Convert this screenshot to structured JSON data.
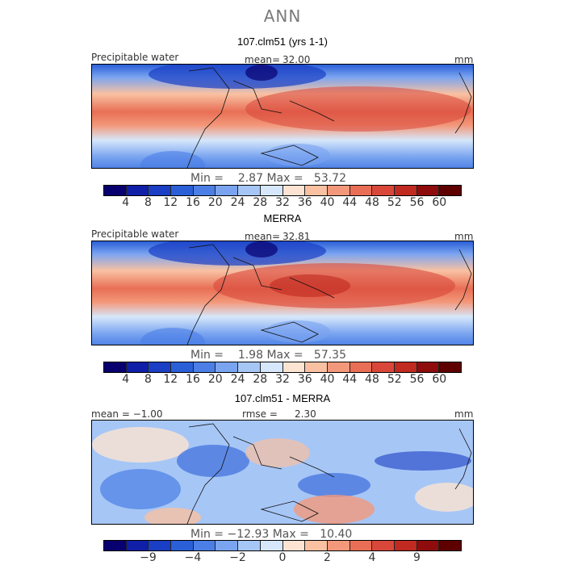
{
  "title": "ANN",
  "panels": [
    {
      "title": "107.clm51 (yrs 1-1)",
      "left_label": "Precipitable water",
      "mid_label": "mean=",
      "mid_value": "32.00",
      "right_label": "mm",
      "min_max": "Min =    2.87 Max =   53.72",
      "colorbar_ticks": [
        "4",
        "8",
        "12",
        "16",
        "20",
        "24",
        "28",
        "32",
        "36",
        "40",
        "44",
        "48",
        "52",
        "56",
        "60"
      ],
      "colorbar_colors": [
        "#08006e",
        "#0f1fa8",
        "#1a3ec4",
        "#2b5fd8",
        "#4b7fe6",
        "#7aa4f0",
        "#a6c6f6",
        "#d6e7fb",
        "#fde4d2",
        "#f9c1a2",
        "#f3987a",
        "#e86f55",
        "#d9473a",
        "#c02a20",
        "#8f0c0c",
        "#5e0000"
      ]
    },
    {
      "title": "MERRA",
      "left_label": "Precipitable water",
      "mid_label": "mean=",
      "mid_value": "32.81",
      "right_label": "mm",
      "min_max": "Min =    1.98 Max =   57.35",
      "colorbar_ticks": [
        "4",
        "8",
        "12",
        "16",
        "20",
        "24",
        "28",
        "32",
        "36",
        "40",
        "44",
        "48",
        "52",
        "56",
        "60"
      ],
      "colorbar_colors": [
        "#08006e",
        "#0f1fa8",
        "#1a3ec4",
        "#2b5fd8",
        "#4b7fe6",
        "#7aa4f0",
        "#a6c6f6",
        "#d6e7fb",
        "#fde4d2",
        "#f9c1a2",
        "#f3987a",
        "#e86f55",
        "#d9473a",
        "#c02a20",
        "#8f0c0c",
        "#5e0000"
      ]
    },
    {
      "title": "107.clm51 - MERRA",
      "left_label": "mean =   −1.00",
      "mid_label": "rmse =",
      "mid_value": "2.30",
      "right_label": "mm",
      "min_max": "Min = −12.93 Max =   10.40",
      "colorbar_ticks": [
        "−9",
        "−4",
        "−2",
        "0",
        "2",
        "4",
        "9"
      ],
      "colorbar_colors": [
        "#08006e",
        "#0f1fa8",
        "#1a3ec4",
        "#2b5fd8",
        "#4b7fe6",
        "#7aa4f0",
        "#a6c6f6",
        "#d6e7fb",
        "#fde4d2",
        "#f9c1a2",
        "#f3987a",
        "#e86f55",
        "#d9473a",
        "#c02a20",
        "#8f0c0c",
        "#5e0000"
      ]
    }
  ],
  "chart_data": [
    {
      "type": "heatmap",
      "title": "107.clm51 (yrs 1-1)",
      "variable": "Precipitable water",
      "units": "mm",
      "mean": 32.0,
      "min": 2.87,
      "max": 53.72,
      "contour_levels": [
        4,
        8,
        12,
        16,
        20,
        24,
        28,
        32,
        36,
        40,
        44,
        48,
        52,
        56,
        60
      ]
    },
    {
      "type": "heatmap",
      "title": "MERRA",
      "variable": "Precipitable water",
      "units": "mm",
      "mean": 32.81,
      "min": 1.98,
      "max": 57.35,
      "contour_levels": [
        4,
        8,
        12,
        16,
        20,
        24,
        28,
        32,
        36,
        40,
        44,
        48,
        52,
        56,
        60
      ]
    },
    {
      "type": "heatmap",
      "title": "107.clm51 - MERRA",
      "units": "mm",
      "mean": -1.0,
      "rmse": 2.3,
      "min": -12.93,
      "max": 10.4,
      "contour_levels": [
        -9,
        -4,
        -2,
        0,
        2,
        4,
        9
      ]
    }
  ]
}
